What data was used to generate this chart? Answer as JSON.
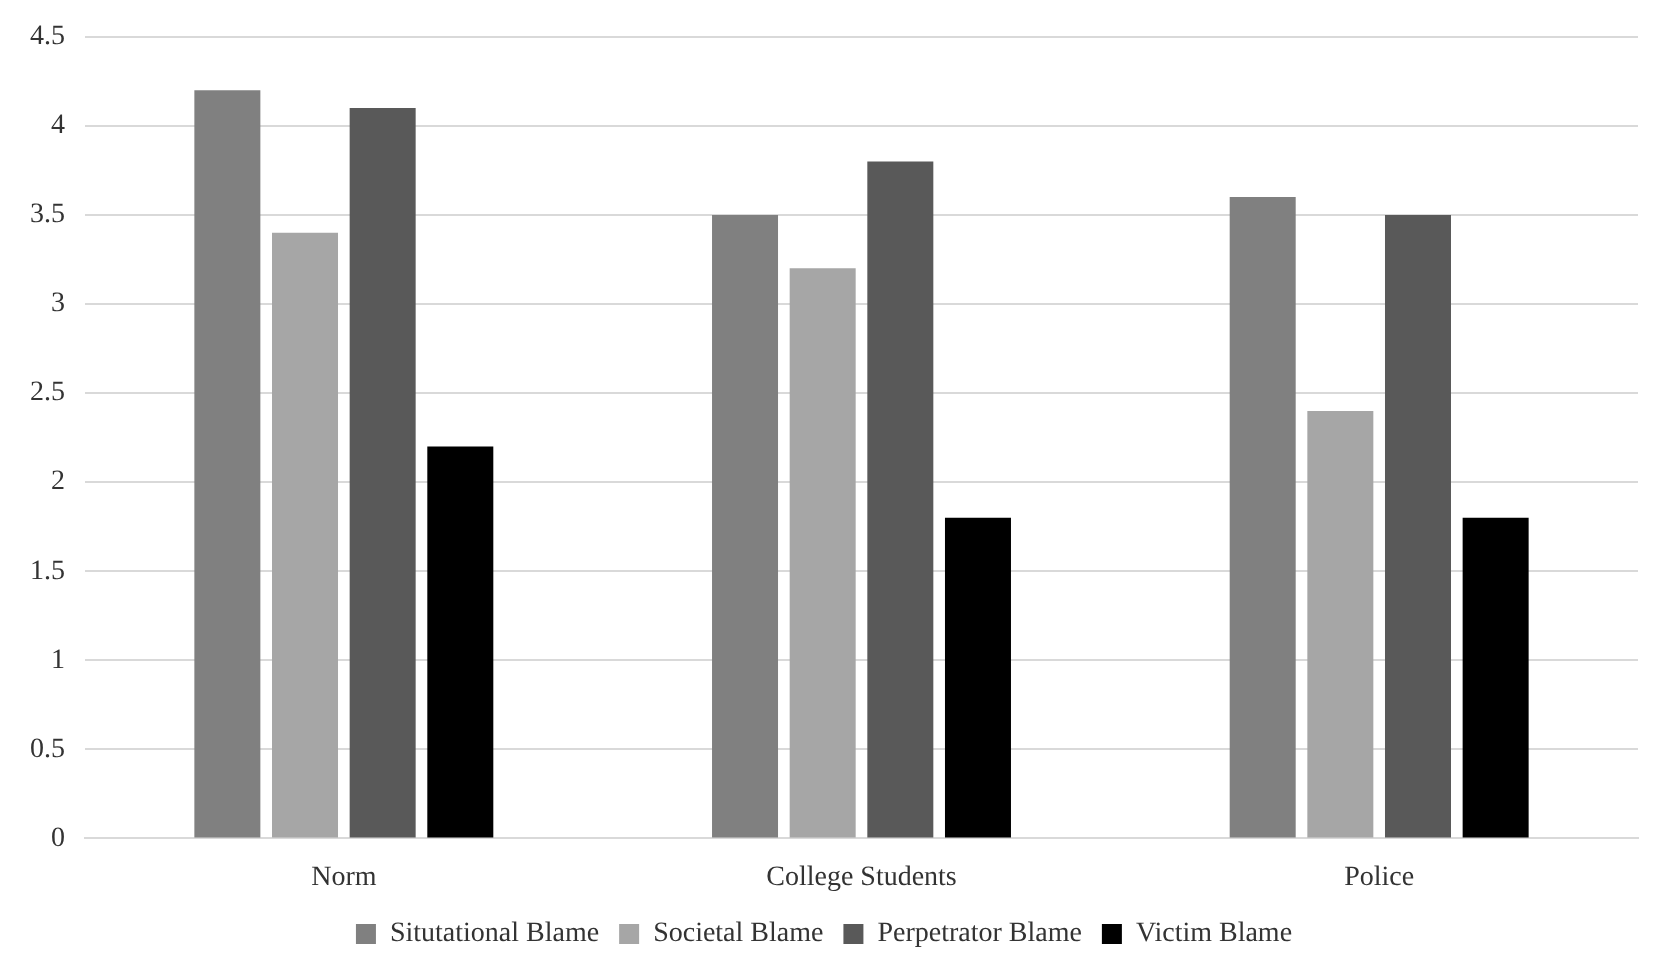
{
  "chart_data": {
    "type": "bar",
    "categories": [
      "Norm",
      "College Students",
      "Police"
    ],
    "series": [
      {
        "name": "Situtational Blame",
        "color": "#808080",
        "values": [
          4.2,
          3.5,
          3.6
        ]
      },
      {
        "name": "Societal Blame",
        "color": "#a6a6a6",
        "values": [
          3.4,
          3.2,
          2.4
        ]
      },
      {
        "name": "Perpetrator Blame",
        "color": "#595959",
        "values": [
          4.1,
          3.8,
          3.5
        ]
      },
      {
        "name": "Victim Blame",
        "color": "#000000",
        "values": [
          2.2,
          1.8,
          1.8
        ]
      }
    ],
    "ylim": [
      0,
      4.5
    ],
    "yticks": [
      0,
      0.5,
      1,
      1.5,
      2,
      2.5,
      3,
      3.5,
      4,
      4.5
    ],
    "grid": "y",
    "legend": "bottom"
  }
}
